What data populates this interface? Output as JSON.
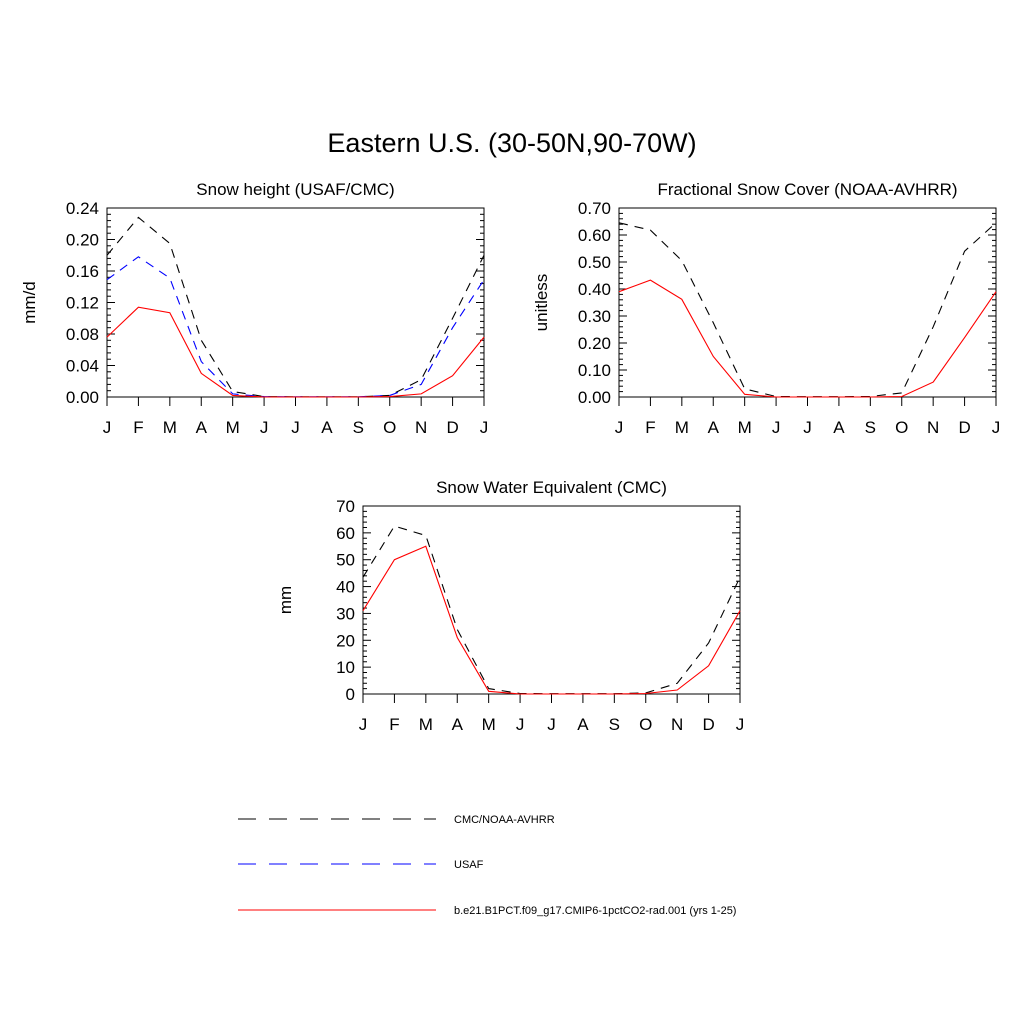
{
  "page": {
    "title": "Eastern U.S. (30-50N,90-70W)"
  },
  "styles": {
    "obs1": "#000000",
    "obs2": "#0000ff",
    "model": "#ff0000"
  },
  "legend": {
    "entries": [
      {
        "label": "CMC/NOAA-AVHRR",
        "color": "#000000",
        "dash": "dashed"
      },
      {
        "label": "USAF",
        "color": "#0000ff",
        "dash": "dashed"
      },
      {
        "label": "b.e21.B1PCT.f09_g17.CMIP6-1pctCO2-rad.001 (yrs 1-25)",
        "color": "#ff0000",
        "dash": "solid"
      }
    ]
  },
  "chart_data": [
    {
      "type": "line",
      "title": "Snow height (USAF/CMC)",
      "ylabel": "mm/d",
      "xlabel": "",
      "categories": [
        "J",
        "F",
        "M",
        "A",
        "M",
        "J",
        "J",
        "A",
        "S",
        "O",
        "N",
        "D",
        "J"
      ],
      "ylim": [
        0,
        0.24
      ],
      "yticks": [
        "0.00",
        "0.04",
        "0.08",
        "0.12",
        "0.16",
        "0.20",
        "0.24"
      ],
      "series": [
        {
          "name": "CMC/NOAA-AVHRR",
          "values": [
            0.18,
            0.228,
            0.195,
            0.072,
            0.007,
            0.0005,
            0.0002,
            0.0002,
            0.0002,
            0.002,
            0.022,
            0.1,
            0.18
          ],
          "style": "obs1"
        },
        {
          "name": "USAF",
          "values": [
            0.149,
            0.178,
            0.151,
            0.045,
            0.004,
            0.0005,
            0.0002,
            0.0002,
            0.0002,
            0.002,
            0.016,
            0.088,
            0.149
          ],
          "style": "obs2"
        },
        {
          "name": "b.e21.B1PCT.f09_g17.CMIP6-1pctCO2-rad.001 (yrs 1-25)",
          "values": [
            0.076,
            0.114,
            0.107,
            0.03,
            0.002,
            0.0,
            0.0,
            0.0,
            0.0,
            0.0005,
            0.004,
            0.027,
            0.076
          ],
          "style": "model"
        }
      ]
    },
    {
      "type": "line",
      "title": "Fractional Snow Cover (NOAA-AVHRR)",
      "ylabel": "unitless",
      "xlabel": "",
      "categories": [
        "J",
        "F",
        "M",
        "A",
        "M",
        "J",
        "J",
        "A",
        "S",
        "O",
        "N",
        "D",
        "J"
      ],
      "ylim": [
        0,
        0.7
      ],
      "yticks": [
        "0.00",
        "0.10",
        "0.20",
        "0.30",
        "0.40",
        "0.50",
        "0.60",
        "0.70"
      ],
      "series": [
        {
          "name": "CMC/NOAA-AVHRR",
          "values": [
            0.645,
            0.618,
            0.505,
            0.275,
            0.03,
            0.002,
            0.001,
            0.001,
            0.002,
            0.015,
            0.26,
            0.54,
            0.645
          ],
          "style": "obs1"
        },
        {
          "name": "b.e21.B1PCT.f09_g17.CMIP6-1pctCO2-rad.001 (yrs 1-25)",
          "values": [
            0.39,
            0.433,
            0.362,
            0.15,
            0.01,
            0.0,
            0.0,
            0.0,
            0.0,
            0.002,
            0.055,
            0.22,
            0.39
          ],
          "style": "model"
        }
      ]
    },
    {
      "type": "line",
      "title": "Snow Water Equivalent (CMC)",
      "ylabel": "mm",
      "xlabel": "",
      "categories": [
        "J",
        "F",
        "M",
        "A",
        "M",
        "J",
        "J",
        "A",
        "S",
        "O",
        "N",
        "D",
        "J"
      ],
      "ylim": [
        0,
        70
      ],
      "yticks": [
        "0",
        "10",
        "20",
        "30",
        "40",
        "50",
        "60",
        "70"
      ],
      "series": [
        {
          "name": "CMC/NOAA-AVHRR",
          "values": [
            43.5,
            62.5,
            59.0,
            24.0,
            2.0,
            0.2,
            0.1,
            0.1,
            0.1,
            0.4,
            4.0,
            19.0,
            43.5
          ],
          "style": "obs1"
        },
        {
          "name": "b.e21.B1PCT.f09_g17.CMIP6-1pctCO2-rad.001 (yrs 1-25)",
          "values": [
            31.0,
            50.0,
            55.0,
            21.0,
            1.0,
            0.0,
            0.0,
            0.0,
            0.0,
            0.2,
            1.5,
            10.5,
            31.0
          ],
          "style": "model"
        }
      ]
    }
  ]
}
